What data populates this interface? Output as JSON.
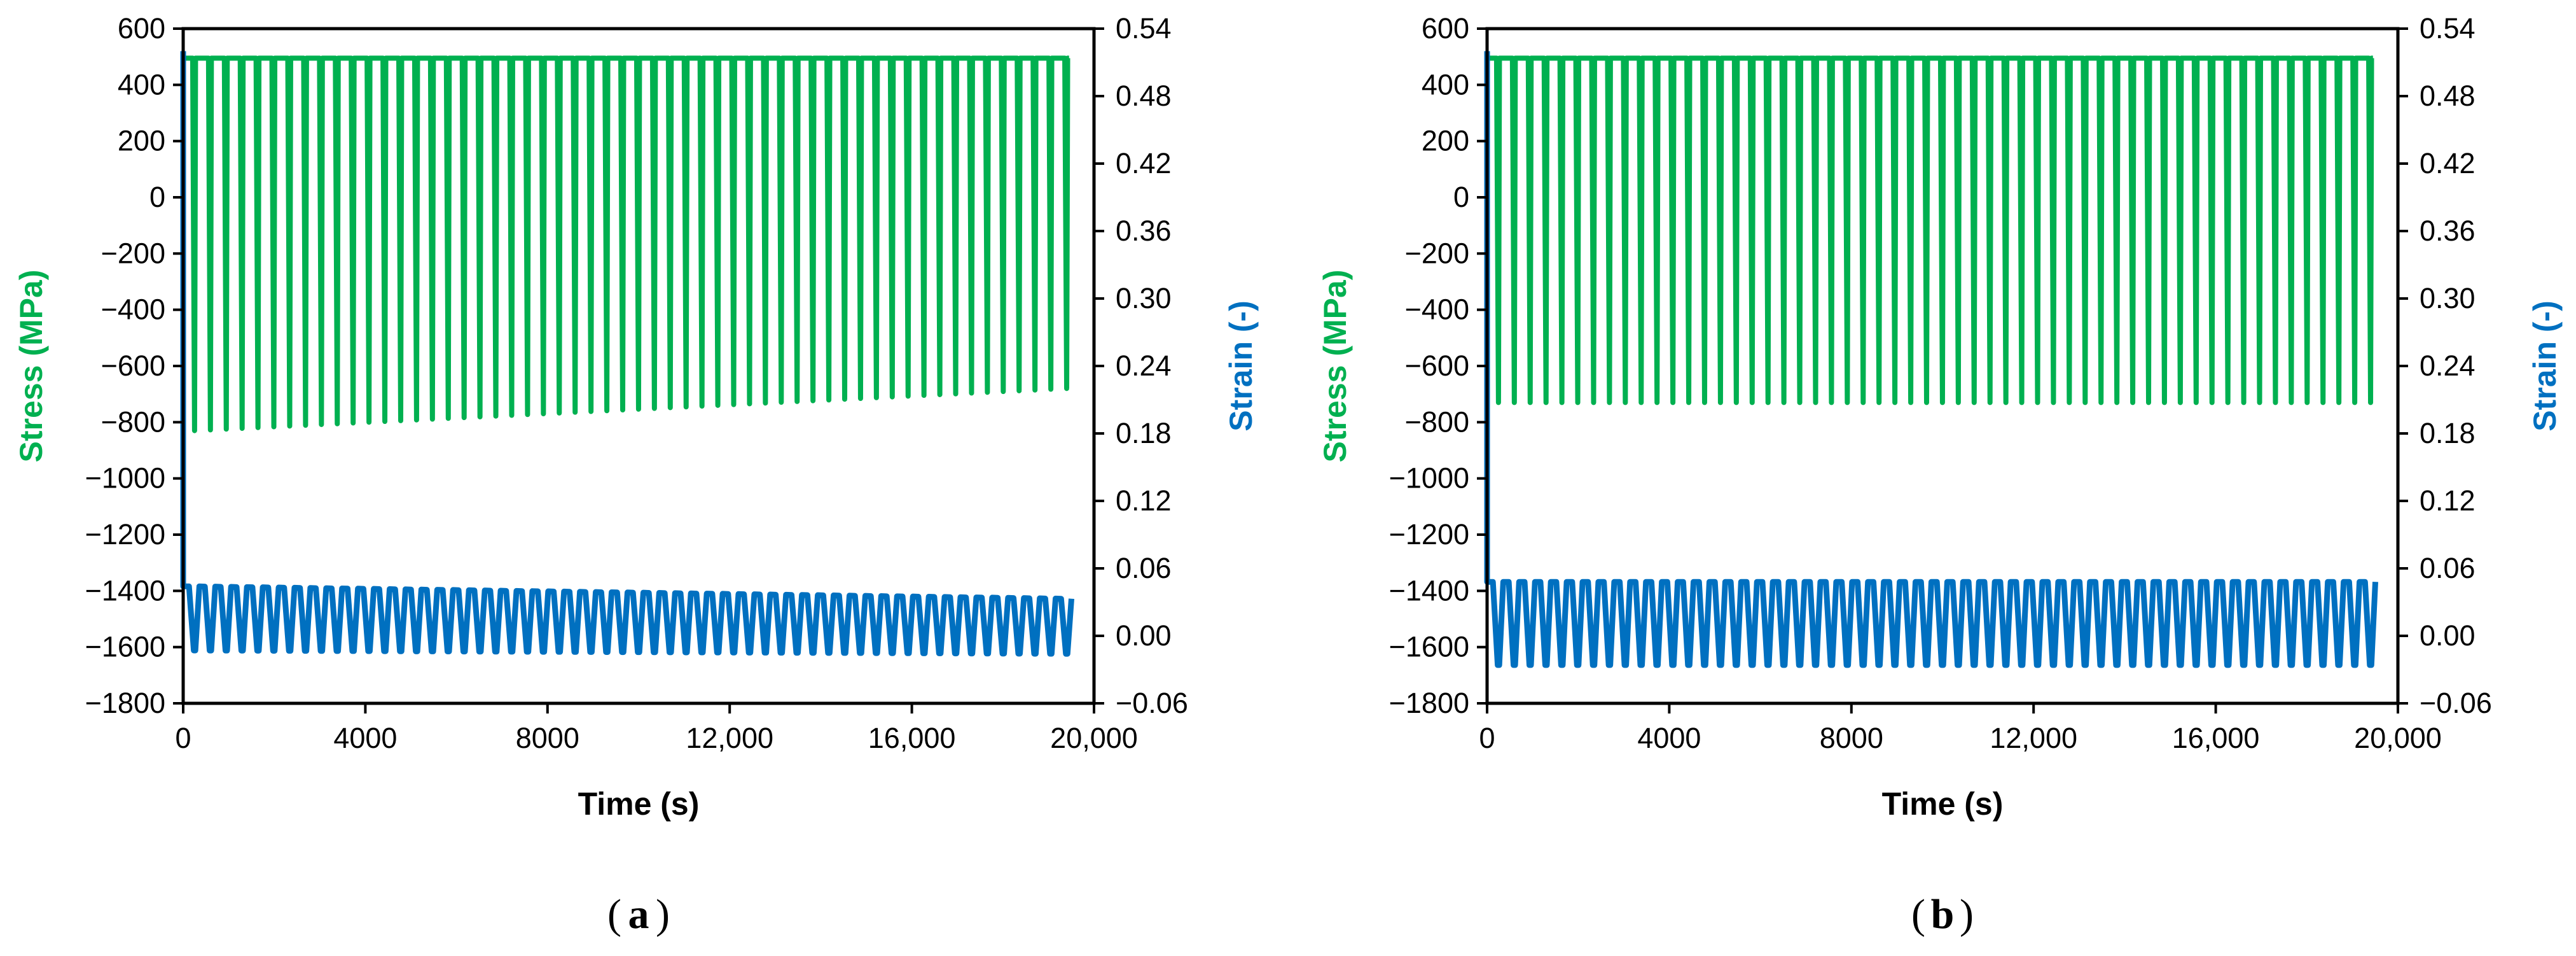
{
  "colors": {
    "stress": "#00B050",
    "strain": "#0070C0",
    "axis": "#000000"
  },
  "chart_data": [
    {
      "type": "line",
      "panel_label": "a",
      "xlabel": "Time (s)",
      "ylabel": "Stress (MPa)",
      "y2label": "Strain (-)",
      "xlim": [
        0,
        20000
      ],
      "ylim": [
        -1800,
        600
      ],
      "y2lim": [
        -0.06,
        0.54
      ],
      "x_ticks": [
        "0",
        "4000",
        "8000",
        "12,000",
        "16,000",
        "20,000"
      ],
      "y_ticks": [
        "600",
        "400",
        "200",
        "0",
        "−200",
        "−400",
        "−600",
        "−800",
        "−1000",
        "−1200",
        "−1400",
        "−1600",
        "−1800"
      ],
      "y2_ticks": [
        "0.54",
        "0.48",
        "0.42",
        "0.36",
        "0.30",
        "0.24",
        "0.18",
        "0.12",
        "0.06",
        "0.00",
        "−0.06"
      ],
      "cycles": 56,
      "cycle_start_s": 250,
      "cycle_end_s": 19400,
      "series": [
        {
          "name": "Stress",
          "axis": "left",
          "peak_mpa_start": 495,
          "peak_mpa_end": 495,
          "valley_mpa_start": -830,
          "valley_mpa_end": -680
        },
        {
          "name": "Strain",
          "axis": "right",
          "peak_start": 0.044,
          "peak_end": 0.033,
          "valley_start": -0.013,
          "valley_end": -0.016
        }
      ]
    },
    {
      "type": "line",
      "panel_label": "b",
      "xlabel": "Time (s)",
      "ylabel": "Stress (MPa)",
      "y2label": "Strain (-)",
      "xlim": [
        0,
        20000
      ],
      "ylim": [
        -1800,
        600
      ],
      "y2lim": [
        -0.06,
        0.54
      ],
      "x_ticks": [
        "0",
        "4000",
        "8000",
        "12,000",
        "16,000",
        "20,000"
      ],
      "y_ticks": [
        "600",
        "400",
        "200",
        "0",
        "−200",
        "−400",
        "−600",
        "−800",
        "−1000",
        "−1200",
        "−1400",
        "−1600",
        "−1800"
      ],
      "y2_ticks": [
        "0.54",
        "0.48",
        "0.42",
        "0.36",
        "0.30",
        "0.24",
        "0.18",
        "0.12",
        "0.06",
        "0.00",
        "−0.06"
      ],
      "cycles": 56,
      "cycle_start_s": 250,
      "cycle_end_s": 19400,
      "series": [
        {
          "name": "Stress",
          "axis": "left",
          "peak_mpa_start": 495,
          "peak_mpa_end": 495,
          "valley_mpa_start": -730,
          "valley_mpa_end": -730
        },
        {
          "name": "Strain",
          "axis": "right",
          "peak_start": 0.048,
          "peak_end": 0.048,
          "valley_start": -0.026,
          "valley_end": -0.026
        }
      ]
    }
  ]
}
